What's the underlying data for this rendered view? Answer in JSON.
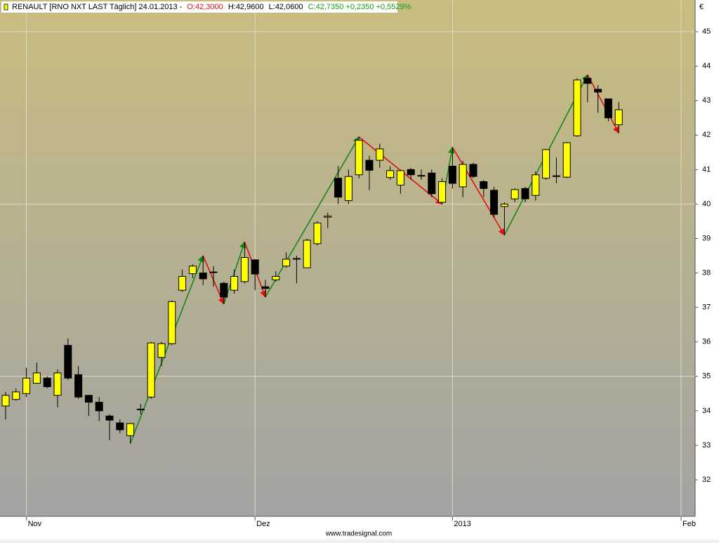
{
  "chart_data": {
    "type": "candlestick",
    "header": {
      "symbol": "RENAULT [RNO NXT LAST Täglich] 24.01.2013 -",
      "open": "O:42,3000",
      "high": "H:42,9600",
      "low": "L:42,0600",
      "close": "C:42,7350 +0,2350 +0,5529%"
    },
    "currency": "€",
    "footer": "www.tradesignal.com",
    "up_color": "#ffff00",
    "down_color": "#000000",
    "x": [
      0,
      1,
      2,
      3,
      4,
      5,
      6,
      7,
      8,
      9,
      10,
      11,
      12,
      13,
      14,
      15,
      16,
      17,
      18,
      19,
      20,
      21,
      22,
      23,
      24,
      25,
      26,
      27,
      28,
      29,
      30,
      31,
      32,
      33,
      34,
      35,
      36,
      37,
      38,
      39,
      40,
      41,
      42,
      43,
      44,
      45,
      46,
      47,
      48,
      49,
      50,
      51,
      52,
      53,
      54,
      55,
      56,
      57,
      58,
      59
    ],
    "open": [
      34.14,
      34.33,
      34.5,
      34.8,
      34.95,
      34.45,
      35.9,
      35.05,
      34.45,
      34.25,
      33.85,
      33.65,
      33.28,
      34.03,
      34.4,
      35.55,
      35.95,
      37.5,
      37.98,
      38.0,
      38.02,
      37.7,
      37.5,
      37.75,
      38.38,
      37.6,
      37.8,
      38.2,
      38.42,
      38.15,
      38.85,
      39.62,
      40.75,
      40.1,
      40.85,
      41.27,
      41.27,
      40.77,
      40.55,
      41.0,
      40.82,
      40.9,
      40.05,
      41.1,
      40.5,
      41.15,
      40.65,
      40.4,
      39.93,
      40.15,
      40.45,
      40.25,
      40.75,
      40.8,
      40.78,
      41.98,
      43.65,
      43.33,
      43.05,
      42.3
    ],
    "high": [
      34.55,
      34.65,
      35.25,
      35.4,
      35.0,
      35.2,
      36.1,
      35.3,
      34.45,
      34.4,
      33.9,
      33.75,
      33.65,
      34.2,
      36.0,
      36.0,
      37.2,
      38.1,
      38.25,
      38.5,
      38.2,
      37.75,
      38.1,
      38.9,
      38.4,
      37.8,
      38.05,
      38.6,
      38.5,
      39.0,
      39.5,
      39.75,
      41.1,
      41.0,
      41.95,
      41.4,
      41.75,
      41.1,
      41.0,
      41.05,
      41.0,
      41.0,
      40.75,
      41.65,
      41.25,
      41.2,
      40.7,
      40.5,
      40.05,
      40.45,
      40.5,
      40.95,
      41.6,
      41.35,
      41.8,
      43.65,
      43.75,
      43.45,
      43.05,
      42.96
    ],
    "low": [
      33.75,
      34.3,
      34.4,
      34.8,
      34.65,
      34.1,
      34.9,
      34.35,
      33.85,
      33.7,
      33.15,
      33.35,
      33.05,
      33.9,
      34.35,
      35.3,
      35.9,
      37.45,
      37.85,
      37.65,
      37.6,
      37.1,
      37.4,
      37.7,
      37.5,
      37.3,
      37.75,
      38.15,
      37.7,
      38.15,
      38.8,
      39.3,
      40.0,
      40.0,
      40.75,
      40.4,
      41.05,
      40.7,
      40.3,
      40.7,
      40.7,
      40.2,
      40.0,
      40.45,
      40.2,
      40.75,
      40.2,
      39.6,
      39.1,
      40.05,
      40.05,
      40.1,
      40.7,
      40.6,
      40.75,
      41.95,
      42.95,
      42.65,
      42.4,
      42.06
    ],
    "close": [
      34.45,
      34.55,
      34.95,
      35.1,
      34.7,
      35.1,
      34.95,
      34.4,
      34.25,
      34.0,
      33.73,
      33.45,
      33.63,
      34.05,
      35.97,
      35.95,
      37.17,
      37.9,
      38.2,
      37.83,
      38.03,
      37.3,
      37.9,
      38.45,
      37.97,
      37.55,
      37.9,
      38.4,
      38.42,
      38.95,
      39.45,
      39.65,
      40.2,
      40.8,
      41.85,
      40.98,
      41.6,
      40.97,
      40.97,
      40.85,
      40.83,
      40.3,
      40.65,
      40.6,
      41.15,
      40.8,
      40.45,
      39.7,
      40.0,
      40.42,
      40.15,
      40.85,
      41.58,
      40.82,
      41.78,
      43.6,
      43.5,
      43.25,
      42.5,
      42.735
    ],
    "zigzag": {
      "x": [
        12,
        19,
        21,
        23,
        25,
        34,
        42,
        43,
        48,
        56,
        59
      ],
      "values": [
        33.05,
        38.5,
        37.1,
        38.9,
        37.3,
        41.95,
        40.0,
        41.65,
        39.1,
        43.75,
        42.06
      ],
      "up_color": "#128a12",
      "down_color": "#e01010"
    },
    "xlim": [
      -0.54,
      66.35
    ],
    "xticks": [
      {
        "value": 2,
        "label": "Nov"
      },
      {
        "value": 24,
        "label": "Dez"
      },
      {
        "value": 43,
        "label": "2013"
      },
      {
        "value": 65,
        "label": "Feb"
      }
    ],
    "ylim": [
      30.94,
      45.92
    ],
    "yticks": [
      32,
      33,
      34,
      35,
      36,
      37,
      38,
      39,
      40,
      41,
      42,
      43,
      44,
      45
    ],
    "grid_yticks": [
      35,
      40,
      45
    ]
  }
}
